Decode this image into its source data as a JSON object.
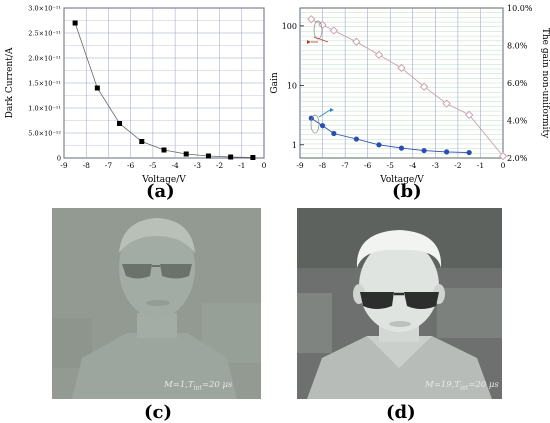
{
  "chart_data": [
    {
      "type": "line",
      "panel": "(a)",
      "xlabel": "Voltage/V",
      "ylabel": "Dark Current/A",
      "xlim": [
        -9,
        0
      ],
      "ylim": [
        0,
        3e-11
      ],
      "x_ticks": [
        "-9",
        "-8",
        "-7",
        "-6",
        "-5",
        "-4",
        "-3",
        "-2",
        "-1",
        "0"
      ],
      "y_ticks": [
        "0",
        "5.0×10⁻¹²",
        "1.0×10⁻¹¹",
        "1.5×10⁻¹¹",
        "2.0×10⁻¹¹",
        "2.5×10⁻¹¹",
        "3.0×10⁻¹¹"
      ],
      "grid": true,
      "series": [
        {
          "marker": "filled-square",
          "color": "#000000",
          "x": [
            -8.5,
            -7.5,
            -6.5,
            -5.5,
            -4.5,
            -3.5,
            -2.5,
            -1.5,
            -0.5
          ],
          "y": [
            2.7e-11,
            1.4e-11,
            6.9e-12,
            3.3e-12,
            1.6e-12,
            8e-13,
            4e-13,
            2e-13,
            1e-13
          ]
        }
      ]
    },
    {
      "type": "line",
      "panel": "(b)",
      "xlabel": "Voltage/V",
      "ylabel": "Gain",
      "y2label": "The gain non-uniformity",
      "xlim": [
        -9,
        0
      ],
      "ylim": [
        0.6,
        200
      ],
      "yscale": "log",
      "y2lim": [
        0.02,
        0.1
      ],
      "x_ticks": [
        "-9",
        "-8",
        "-7",
        "-6",
        "-5",
        "-4",
        "-3",
        "-2",
        "-1",
        "0"
      ],
      "y_ticks": [
        "1",
        "10",
        "100"
      ],
      "y2_ticks": [
        "2.0%",
        "4.0%",
        "6.0%",
        "8.0%",
        "10.0%"
      ],
      "grid": true,
      "series": [
        {
          "axis": "right",
          "marker": "open-diamond",
          "color": "#c9a0b0",
          "x": [
            -8.5,
            -8.0,
            -7.5,
            -6.5,
            -5.5,
            -4.5,
            -3.5,
            -2.5,
            -1.5,
            -0.0
          ],
          "y": [
            0.094,
            0.091,
            0.088,
            0.082,
            0.075,
            0.068,
            0.058,
            0.049,
            0.043,
            0.021
          ]
        },
        {
          "axis": "left",
          "marker": "filled-circle",
          "color": "#2b4fb0",
          "x": [
            -8.5,
            -8.0,
            -7.5,
            -6.5,
            -5.5,
            -4.5,
            -3.5,
            -2.5,
            -1.5
          ],
          "y": [
            2.8,
            2.1,
            1.55,
            1.25,
            1.0,
            0.88,
            0.8,
            0.76,
            0.74
          ]
        }
      ]
    }
  ],
  "images": {
    "c": {
      "panel": "(c)",
      "caption_m": "M",
      "caption_eq": "=1,T",
      "caption_sub": "int",
      "caption_rest": "=20 μs"
    },
    "d": {
      "panel": "(d)",
      "caption_m": "M",
      "caption_eq": "=19,T",
      "caption_sub": "int",
      "caption_rest": "=20 μs"
    }
  },
  "colors": {
    "grid_a": "#9aa0c8",
    "grid_b_v": "#8899cc",
    "grid_b_h": "#a6cfa6",
    "photo_c_bg": "#8f968f",
    "photo_d_bg": "#6d706e"
  }
}
